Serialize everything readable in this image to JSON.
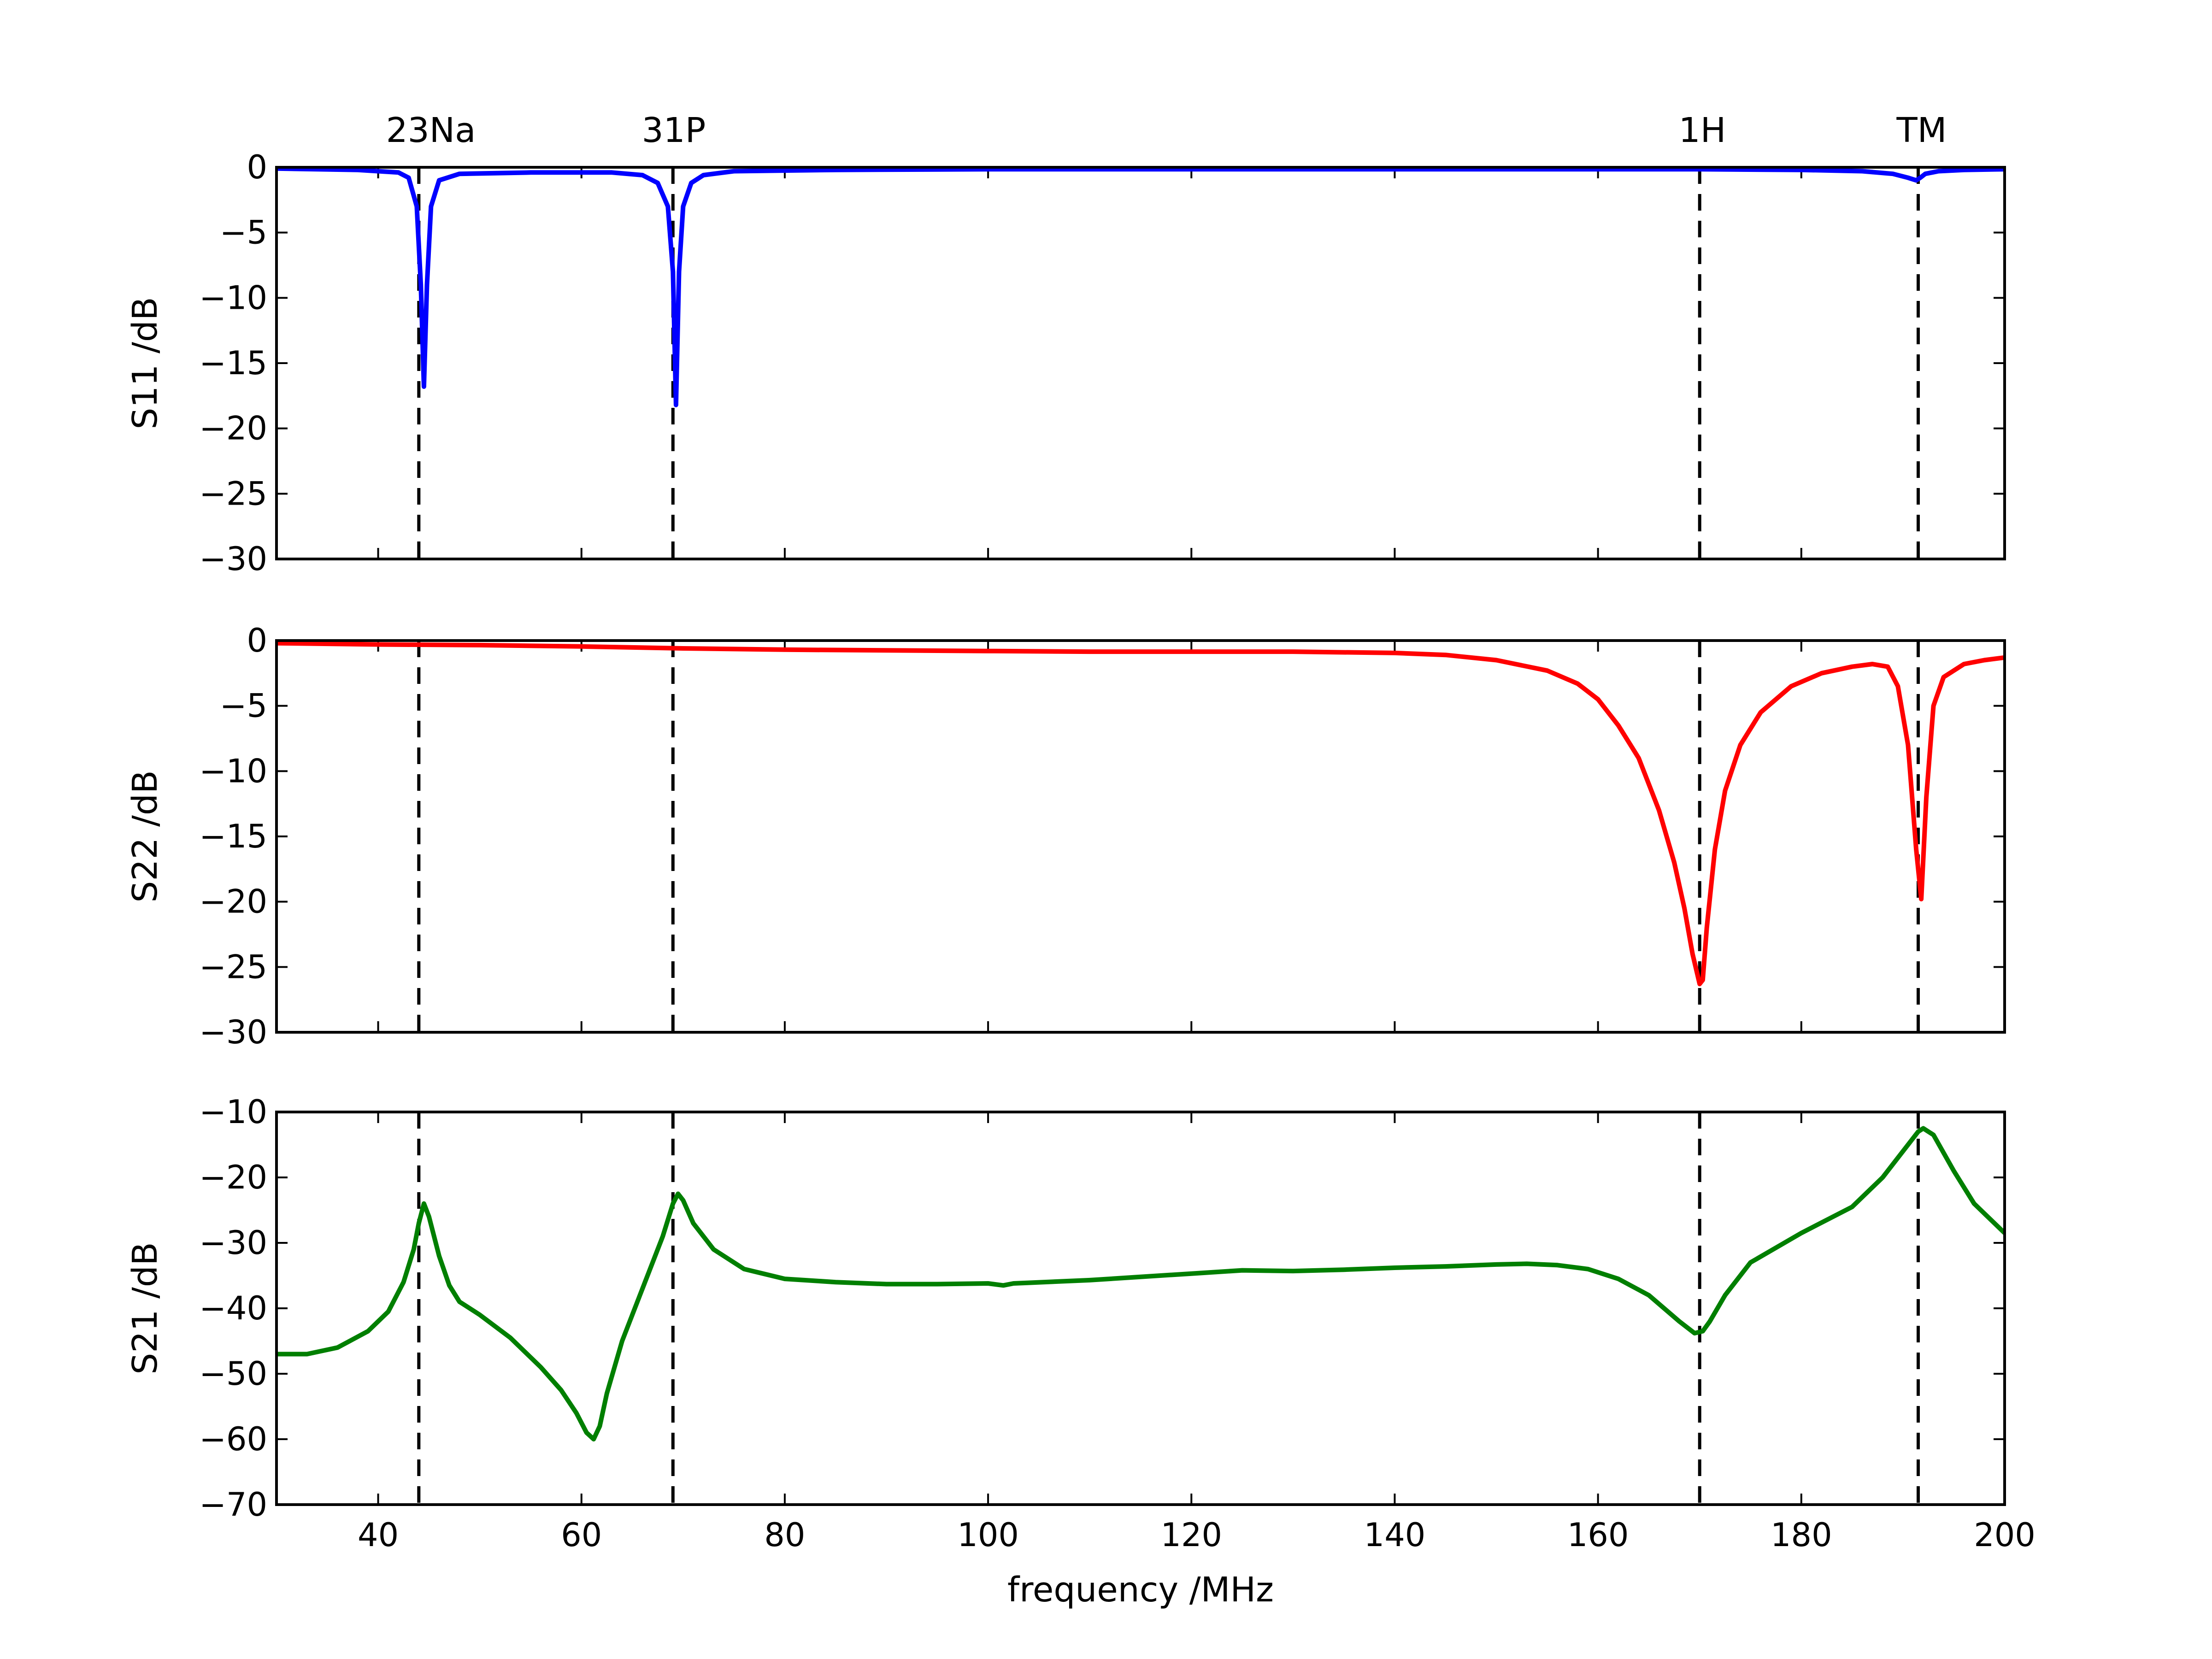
{
  "chart_data": [
    {
      "type": "line",
      "ylabel": "S11 /dB",
      "xlim": [
        30,
        200
      ],
      "ylim": [
        -30,
        0
      ],
      "yticks": [
        0,
        -5,
        -10,
        -15,
        -20,
        -25,
        -30
      ],
      "ytick_labels": [
        "0",
        "−5",
        "−10",
        "−15",
        "−20",
        "−25",
        "−30"
      ],
      "color": "#0000ff",
      "series": [
        {
          "x": [
            30,
            38,
            42,
            43,
            43.8,
            44.2,
            44.5,
            44.8,
            45.2,
            46,
            48,
            55,
            63,
            66,
            67.5,
            68.5,
            69,
            69.3,
            69.6,
            70,
            70.8,
            72,
            75,
            85,
            100,
            120,
            150,
            170,
            180,
            186,
            189,
            190.5,
            191.3,
            191.7,
            192.2,
            193.5,
            196,
            200
          ],
          "y": [
            -0.1,
            -0.2,
            -0.4,
            -0.8,
            -3,
            -9,
            -16.8,
            -9,
            -3,
            -1,
            -0.5,
            -0.4,
            -0.4,
            -0.6,
            -1.2,
            -3,
            -8,
            -18.2,
            -8,
            -3,
            -1.2,
            -0.6,
            -0.3,
            -0.2,
            -0.15,
            -0.15,
            -0.15,
            -0.15,
            -0.2,
            -0.3,
            -0.5,
            -0.8,
            -1.0,
            -0.8,
            -0.5,
            -0.3,
            -0.2,
            -0.15
          ]
        }
      ]
    },
    {
      "type": "line",
      "ylabel": "S22 /dB",
      "xlim": [
        30,
        200
      ],
      "ylim": [
        -30,
        0
      ],
      "yticks": [
        0,
        -5,
        -10,
        -15,
        -20,
        -25,
        -30
      ],
      "ytick_labels": [
        "0",
        "−5",
        "−10",
        "−15",
        "−20",
        "−25",
        "−30"
      ],
      "color": "#ff0000",
      "series": [
        {
          "x": [
            30,
            40,
            50,
            60,
            70,
            80,
            90,
            100,
            110,
            120,
            130,
            140,
            145,
            150,
            155,
            158,
            160,
            162,
            164,
            166,
            167.5,
            168.5,
            169.3,
            170,
            170.3,
            170.7,
            171.5,
            172.5,
            174,
            176,
            179,
            182,
            185,
            187,
            188.5,
            189.5,
            190.5,
            191.3,
            191.8,
            192.3,
            193,
            194,
            196,
            198,
            200
          ],
          "y": [
            -0.2,
            -0.3,
            -0.35,
            -0.45,
            -0.6,
            -0.7,
            -0.75,
            -0.8,
            -0.85,
            -0.85,
            -0.85,
            -0.95,
            -1.1,
            -1.5,
            -2.3,
            -3.3,
            -4.5,
            -6.5,
            -9,
            -13,
            -17,
            -20.5,
            -24,
            -26.3,
            -26,
            -22,
            -16,
            -11.5,
            -8,
            -5.5,
            -3.5,
            -2.5,
            -2,
            -1.8,
            -2,
            -3.5,
            -8,
            -16,
            -19.8,
            -12,
            -5,
            -2.8,
            -1.8,
            -1.5,
            -1.3
          ]
        }
      ]
    },
    {
      "type": "line",
      "ylabel": "S21 /dB",
      "xlabel": "frequency /MHz",
      "xlim": [
        30,
        200
      ],
      "ylim": [
        -70,
        -10
      ],
      "yticks": [
        -10,
        -20,
        -30,
        -40,
        -50,
        -60,
        -70
      ],
      "ytick_labels": [
        "−10",
        "−20",
        "−30",
        "−40",
        "−50",
        "−60",
        "−70"
      ],
      "xticks": [
        40,
        60,
        80,
        100,
        120,
        140,
        160,
        180,
        200
      ],
      "xtick_labels": [
        "40",
        "60",
        "80",
        "100",
        "120",
        "140",
        "160",
        "180",
        "200"
      ],
      "color": "#007f00",
      "series": [
        {
          "x": [
            30,
            33,
            36,
            39,
            41,
            42.5,
            43.5,
            44,
            44.5,
            45,
            46,
            47,
            48,
            50,
            53,
            56,
            58,
            59.5,
            60.5,
            61.2,
            61.8,
            62.5,
            64,
            66,
            68,
            69,
            69.5,
            70,
            71,
            73,
            76,
            80,
            85,
            90,
            95,
            100,
            101.5,
            102.5,
            104,
            110,
            115,
            120,
            125,
            130,
            135,
            140,
            145,
            150,
            153,
            156,
            159,
            162,
            165,
            168,
            169.5,
            170.3,
            171,
            172.5,
            175,
            180,
            185,
            188,
            190,
            191.5,
            192,
            193,
            195,
            197,
            200
          ],
          "y": [
            -47,
            -47,
            -46,
            -43.5,
            -40.5,
            -36,
            -31,
            -27,
            -24,
            -26,
            -32,
            -36.5,
            -39,
            -41,
            -44.5,
            -49,
            -52.5,
            -56,
            -59,
            -60,
            -58,
            -53,
            -45,
            -37,
            -29,
            -24,
            -22.5,
            -23.5,
            -27,
            -31,
            -34,
            -35.5,
            -36,
            -36.3,
            -36.3,
            -36.2,
            -36.5,
            -36.2,
            -36.1,
            -35.7,
            -35.2,
            -34.7,
            -34.2,
            -34.3,
            -34.1,
            -33.8,
            -33.6,
            -33.3,
            -33.2,
            -33.4,
            -34,
            -35.5,
            -38,
            -42,
            -43.8,
            -43.5,
            -42,
            -38,
            -33,
            -28.5,
            -24.5,
            -20,
            -16,
            -13,
            -12.5,
            -13.5,
            -19,
            -24,
            -28.5
          ]
        }
      ]
    }
  ],
  "markers": [
    {
      "label": "23Na",
      "x": 44
    },
    {
      "label": "31P",
      "x": 69
    },
    {
      "label": "1H",
      "x": 170
    },
    {
      "label": "TM",
      "x": 191.5
    }
  ]
}
